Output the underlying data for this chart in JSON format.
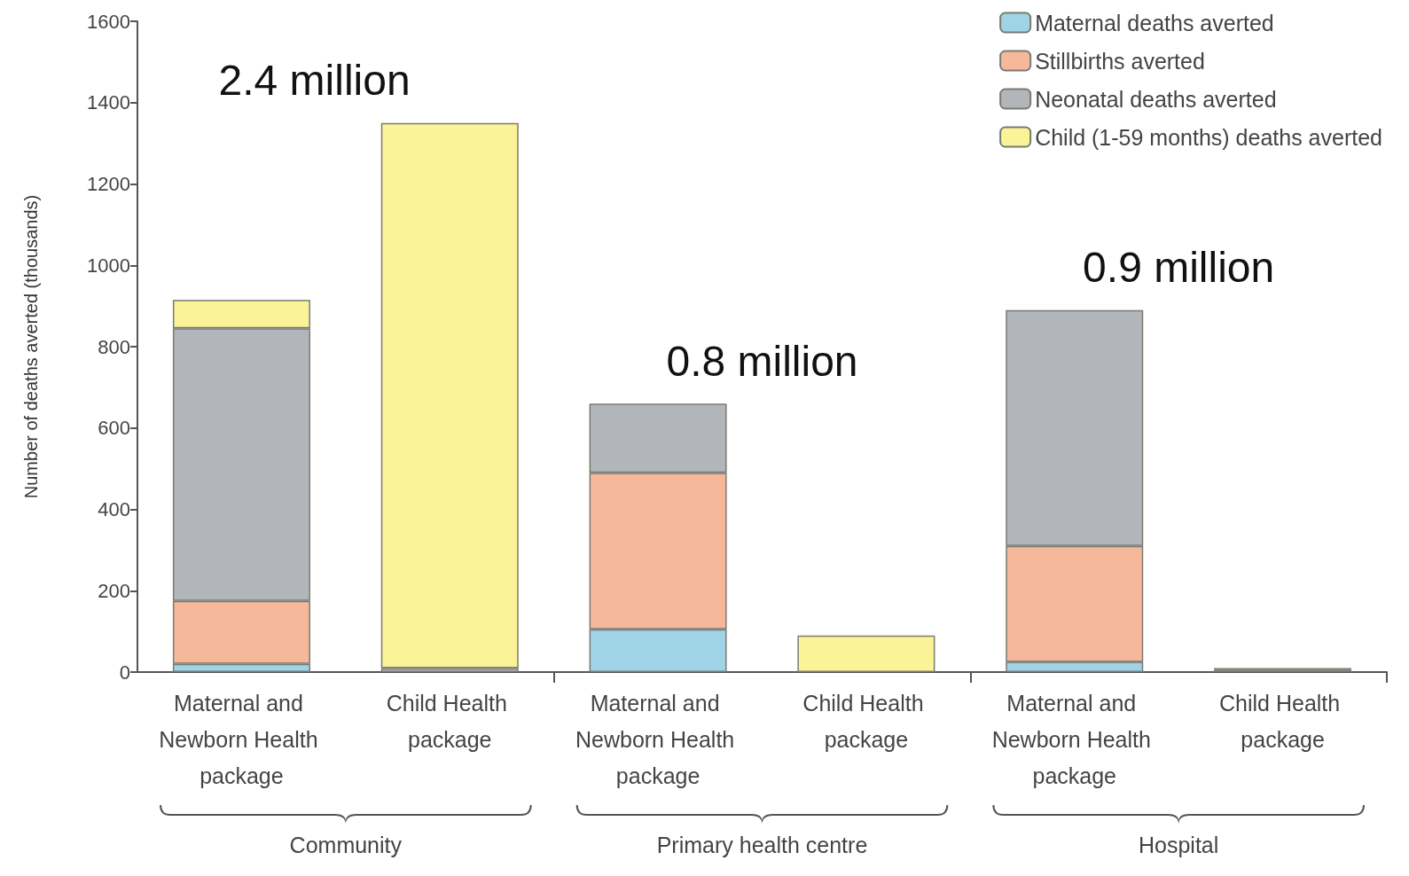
{
  "chart_data": {
    "type": "bar",
    "stacked": true,
    "ylabel": "Number of deaths averted (thousands)",
    "categories": [
      "Maternal and Newborn Health package",
      "Child Health package",
      "Maternal and Newborn Health package",
      "Child Health package",
      "Maternal and Newborn Health package",
      "Child Health package"
    ],
    "series": [
      {
        "name": "Maternal deaths averted",
        "color": "#9fd3e6",
        "values": [
          20,
          0,
          105,
          0,
          25,
          0
        ]
      },
      {
        "name": "Stillbirths averted",
        "color": "#f6b89a",
        "values": [
          155,
          0,
          385,
          0,
          285,
          0
        ]
      },
      {
        "name": "Neonatal deaths averted",
        "color": "#b2b6bb",
        "values": [
          670,
          10,
          170,
          0,
          580,
          5
        ]
      },
      {
        "name": "Child (1-59 months) deaths averted",
        "color": "#fbf398",
        "values": [
          70,
          1340,
          0,
          90,
          0,
          5
        ]
      }
    ],
    "ylim": [
      0,
      1600
    ],
    "yticks": [
      0,
      200,
      400,
      600,
      800,
      1000,
      1200,
      1400,
      1600
    ],
    "grid": false,
    "legend": "top right",
    "annotations": [
      "2.4 million",
      "0.8 million",
      "0.9 million",
      "Community",
      "Primary health centre",
      "Hospital"
    ]
  }
}
